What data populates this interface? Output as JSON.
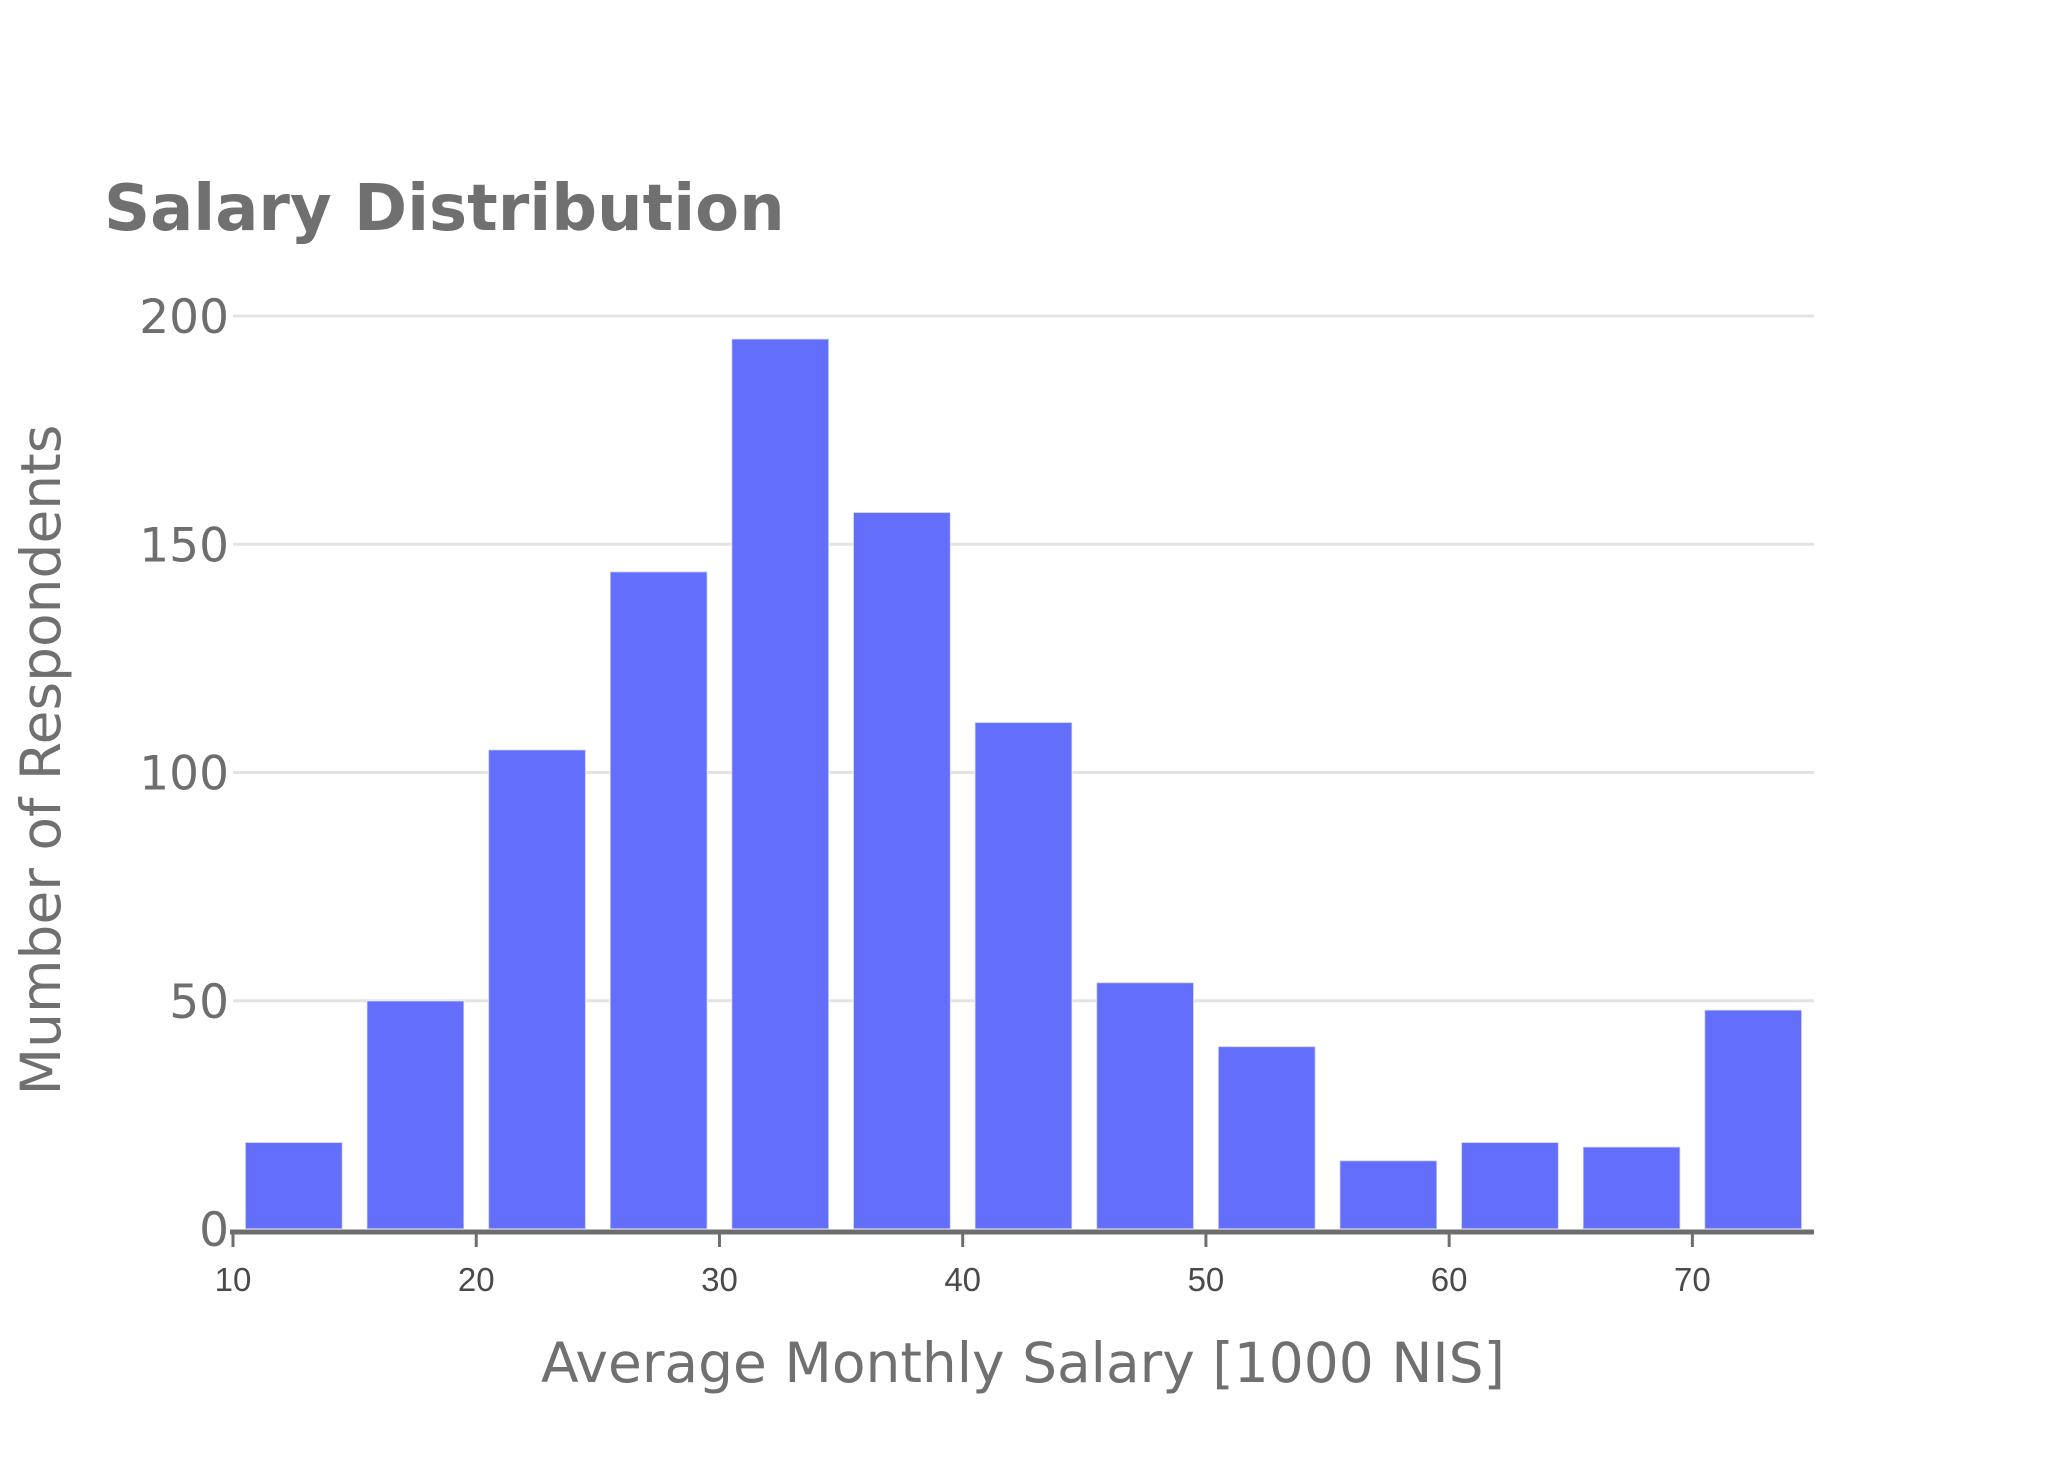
{
  "chart_data": {
    "type": "bar",
    "title": "Salary Distribution",
    "xlabel": "Average Monthly Salary [1000 NIS]",
    "ylabel": "Mumber of Respondents",
    "bin_edges": [
      10,
      15,
      20,
      25,
      30,
      35,
      40,
      45,
      50,
      55,
      60,
      65,
      70,
      75
    ],
    "categories": [
      "10-15",
      "15-20",
      "20-25",
      "25-30",
      "30-35",
      "35-40",
      "40-45",
      "45-50",
      "50-55",
      "55-60",
      "60-65",
      "65-70",
      "70-75"
    ],
    "values": [
      19,
      50,
      105,
      144,
      195,
      157,
      111,
      54,
      40,
      15,
      19,
      18,
      48
    ],
    "xlim": [
      10,
      75
    ],
    "ylim": [
      0,
      200
    ],
    "x_ticks": [
      10,
      20,
      30,
      40,
      50,
      60,
      70
    ],
    "y_ticks": [
      0,
      50,
      100,
      150,
      200
    ],
    "grid": {
      "y": true,
      "x": false
    },
    "legend": null,
    "bar_color": "#636efa",
    "grid_color": "#e3e3e3",
    "axis_color": "#6e6e6e"
  }
}
